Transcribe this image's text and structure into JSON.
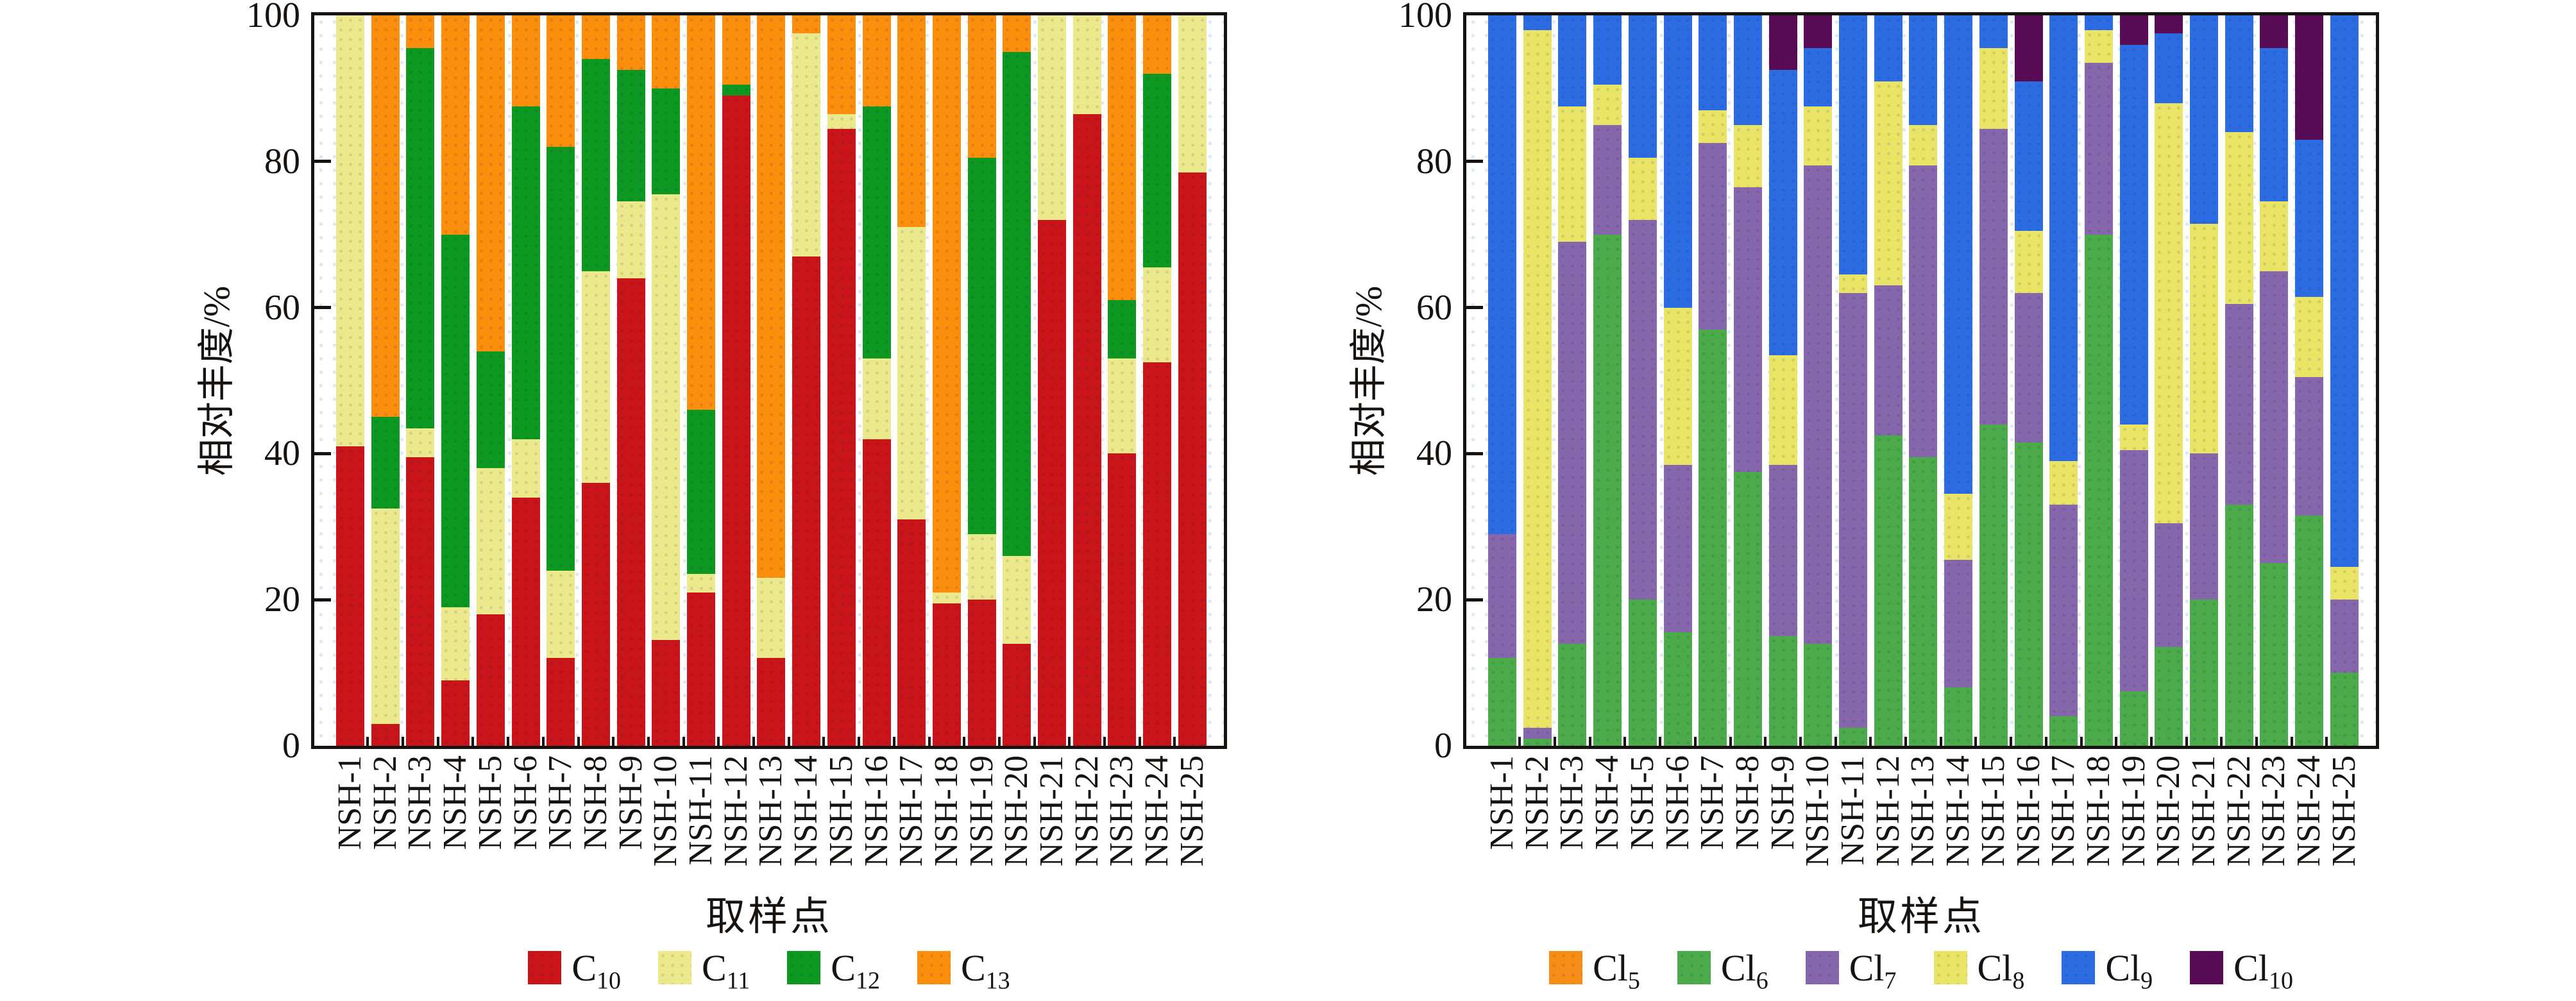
{
  "figure_background": "#ffffff",
  "axis_color": "#171310",
  "chart_data": [
    {
      "type": "bar",
      "stacked": true,
      "title": "",
      "xlabel": "取样点",
      "ylabel": "相对丰度/%",
      "ylim": [
        0,
        100
      ],
      "yticks": [
        0,
        20,
        40,
        60,
        80,
        100
      ],
      "grid": false,
      "legend_position": "bottom",
      "categories": [
        "NSH-1",
        "NSH-2",
        "NSH-3",
        "NSH-4",
        "NSH-5",
        "NSH-6",
        "NSH-7",
        "NSH-8",
        "NSH-9",
        "NSH-10",
        "NSH-11",
        "NSH-12",
        "NSH-13",
        "NSH-14",
        "NSH-15",
        "NSH-16",
        "NSH-17",
        "NSH-18",
        "NSH-19",
        "NSH-20",
        "NSH-21",
        "NSH-22",
        "NSH-23",
        "NSH-24",
        "NSH-25"
      ],
      "series": [
        {
          "name": "C10",
          "legend_base": "C",
          "legend_sub": "10",
          "color": "#c9141a",
          "values": [
            41,
            3,
            39.5,
            9,
            18,
            34,
            12,
            36,
            64,
            14.5,
            21,
            89,
            12,
            67,
            84.5,
            42,
            31,
            19.5,
            20,
            14,
            72,
            86.5,
            40,
            52.5,
            78.5
          ]
        },
        {
          "name": "C11",
          "legend_base": "C",
          "legend_sub": "11",
          "color": "#ece88c",
          "values": [
            59,
            29.5,
            4,
            10,
            20,
            8,
            12,
            29,
            10.5,
            61,
            2.5,
            0,
            11,
            30.5,
            2,
            11,
            40,
            1.5,
            9,
            12,
            28,
            13.5,
            13,
            13,
            21.5
          ]
        },
        {
          "name": "C12",
          "legend_base": "C",
          "legend_sub": "12",
          "color": "#0d9822",
          "values": [
            0,
            12.5,
            52,
            51,
            16,
            45.5,
            58,
            29,
            18,
            14.5,
            22.5,
            1.5,
            0,
            0,
            0,
            34.5,
            0,
            0,
            51.5,
            69,
            0,
            0,
            8,
            26.5,
            0
          ]
        },
        {
          "name": "C13",
          "legend_base": "C",
          "legend_sub": "13",
          "color": "#fb8e0c",
          "values": [
            0,
            55,
            4.5,
            30,
            46,
            12.5,
            18,
            6,
            7.5,
            10,
            54,
            9.5,
            77,
            2.5,
            13.5,
            12.5,
            29,
            79,
            19.5,
            5,
            0,
            0,
            39,
            8,
            0
          ]
        }
      ]
    },
    {
      "type": "bar",
      "stacked": true,
      "title": "",
      "xlabel": "取样点",
      "ylabel": "相对丰度/%",
      "ylim": [
        0,
        100
      ],
      "yticks": [
        0,
        20,
        40,
        60,
        80,
        100
      ],
      "grid": false,
      "legend_position": "bottom",
      "categories": [
        "NSH-1",
        "NSH-2",
        "NSH-3",
        "NSH-4",
        "NSH-5",
        "NSH-6",
        "NSH-7",
        "NSH-8",
        "NSH-9",
        "NSH-10",
        "NSH-11",
        "NSH-12",
        "NSH-13",
        "NSH-14",
        "NSH-15",
        "NSH-16",
        "NSH-17",
        "NSH-18",
        "NSH-19",
        "NSH-20",
        "NSH-21",
        "NSH-22",
        "NSH-23",
        "NSH-24",
        "NSH-25"
      ],
      "series": [
        {
          "name": "Cl5",
          "legend_base": "Cl",
          "legend_sub": "5",
          "color": "#f78d16",
          "values": [
            0,
            0,
            0,
            0,
            0,
            0,
            0,
            0,
            0,
            0,
            0,
            0,
            0,
            0,
            0,
            0,
            0,
            0,
            0,
            0,
            0,
            0,
            0,
            0,
            0
          ]
        },
        {
          "name": "Cl6",
          "legend_base": "Cl",
          "legend_sub": "6",
          "color": "#4bab4b",
          "values": [
            12,
            1,
            14,
            70,
            20,
            15.5,
            57,
            37.5,
            15,
            14,
            2.5,
            42.5,
            39.5,
            8,
            44,
            41.5,
            4,
            70,
            7.5,
            13.5,
            20,
            33,
            25,
            31.5,
            10
          ]
        },
        {
          "name": "Cl7",
          "legend_base": "Cl",
          "legend_sub": "7",
          "color": "#8667ac",
          "values": [
            17,
            1.5,
            55,
            15,
            52,
            23,
            25.5,
            39,
            23.5,
            65.5,
            59.5,
            20.5,
            40,
            17.5,
            40.5,
            20.5,
            29,
            23.5,
            33,
            17,
            20,
            27.5,
            40,
            19,
            10
          ]
        },
        {
          "name": "Cl8",
          "legend_base": "Cl",
          "legend_sub": "8",
          "color": "#e9e465",
          "values": [
            0,
            95.5,
            18.5,
            5.5,
            8.5,
            21.5,
            4.5,
            8.5,
            15,
            8,
            2.5,
            28,
            5.5,
            9,
            11,
            8.5,
            6,
            4.5,
            3.5,
            57.5,
            31.5,
            23.5,
            9.5,
            11,
            4.5
          ]
        },
        {
          "name": "Cl9",
          "legend_base": "Cl",
          "legend_sub": "9",
          "color": "#2c6ce2",
          "values": [
            71,
            2,
            12.5,
            9.5,
            19.5,
            40,
            13,
            15,
            39,
            8,
            35.5,
            9,
            15,
            65.5,
            4.5,
            20.5,
            61,
            2,
            52,
            9.5,
            28.5,
            16,
            21,
            21.5,
            75.5
          ]
        },
        {
          "name": "Cl10",
          "legend_base": "Cl",
          "legend_sub": "10",
          "color": "#5a0b55",
          "values": [
            0,
            0,
            0,
            0,
            0,
            0,
            0,
            0,
            7.5,
            4.5,
            0,
            0,
            0,
            0,
            0,
            9,
            0,
            0,
            4,
            2.5,
            0,
            0,
            4.5,
            17,
            0
          ]
        }
      ]
    }
  ]
}
